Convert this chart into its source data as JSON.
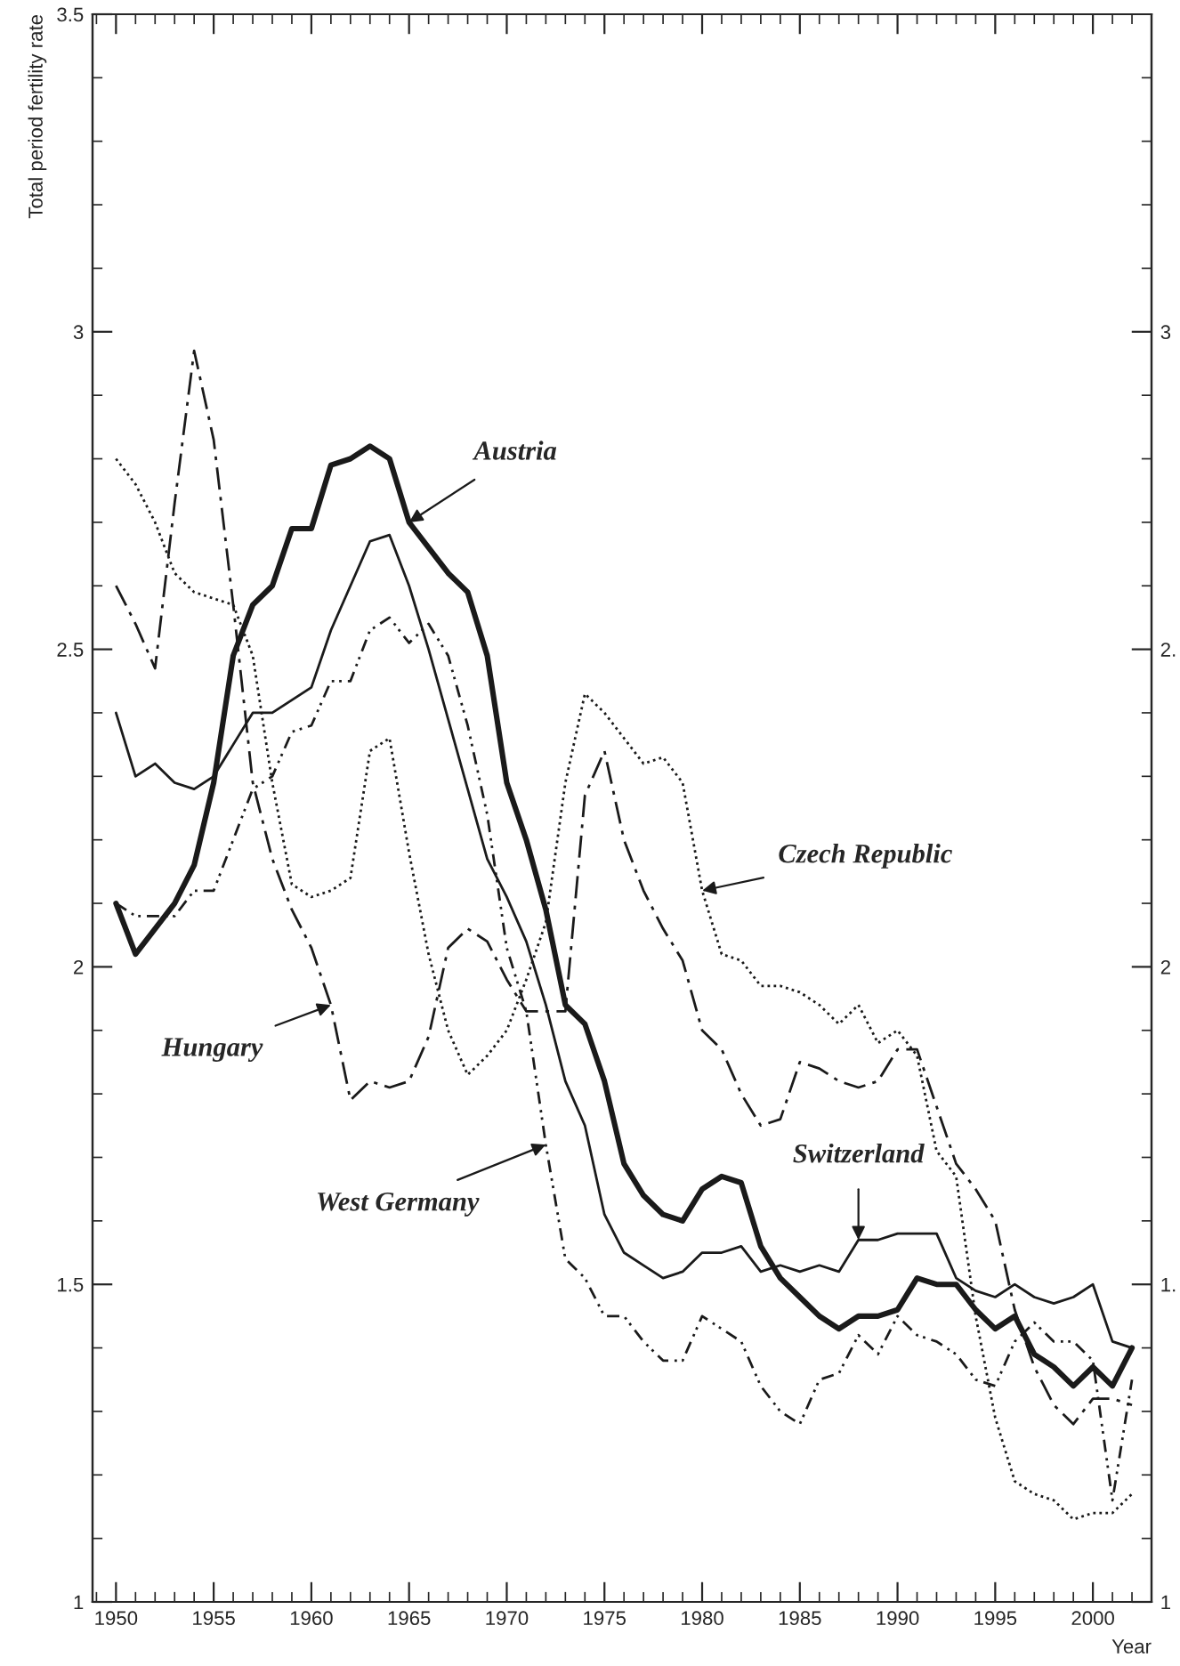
{
  "chart_data": {
    "type": "line",
    "xlabel": "Year",
    "ylabel": "Total period fertility rate",
    "xlim": [
      1948.8,
      2003
    ],
    "xticks": [
      1950,
      1955,
      1960,
      1965,
      1970,
      1975,
      1980,
      1985,
      1990,
      1995,
      2000
    ],
    "ylim": [
      1,
      3.5
    ],
    "yticks": [
      1,
      1.5,
      2,
      2.5,
      3,
      3.5
    ],
    "y2lim": [
      1,
      3.5
    ],
    "y2ticks": [
      1,
      {
        "value": 1.5,
        "label": "1."
      },
      2,
      {
        "value": 2.5,
        "label": "2."
      },
      3
    ],
    "x": [
      1950,
      1951,
      1952,
      1953,
      1954,
      1955,
      1956,
      1957,
      1958,
      1959,
      1960,
      1961,
      1962,
      1963,
      1964,
      1965,
      1966,
      1967,
      1968,
      1969,
      1970,
      1971,
      1972,
      1973,
      1974,
      1975,
      1976,
      1977,
      1978,
      1979,
      1980,
      1981,
      1982,
      1983,
      1984,
      1985,
      1986,
      1987,
      1988,
      1989,
      1990,
      1991,
      1992,
      1993,
      1994,
      1995,
      1996,
      1997,
      1998,
      1999,
      2000,
      2001,
      2002
    ],
    "grid": false,
    "legend": false,
    "marker": "none",
    "series": [
      {
        "color": "#1a1a1a",
        "line_style": "solid",
        "values": [
          2.1,
          2.02,
          2.06,
          2.1,
          2.16,
          2.29,
          2.49,
          2.57,
          2.6,
          2.69,
          2.69,
          2.79,
          2.8,
          2.82,
          2.8,
          2.7,
          2.66,
          2.62,
          2.59,
          2.49,
          2.29,
          2.2,
          2.09,
          1.94,
          1.91,
          1.82,
          1.69,
          1.64,
          1.61,
          1.6,
          1.65,
          1.67,
          1.66,
          1.56,
          1.51,
          1.48,
          1.45,
          1.43,
          1.45,
          1.45,
          1.46,
          1.51,
          1.5,
          1.5,
          1.46,
          1.43,
          1.45,
          1.39,
          1.37,
          1.34,
          1.37,
          1.34,
          1.4
        ]
      },
      {
        "color": "#1a1a1a",
        "line_style": "solid",
        "values": [
          2.4,
          2.3,
          2.32,
          2.29,
          2.28,
          2.3,
          2.35,
          2.4,
          2.4,
          2.42,
          2.44,
          2.53,
          2.6,
          2.67,
          2.68,
          2.6,
          2.5,
          2.39,
          2.28,
          2.17,
          2.11,
          2.04,
          1.94,
          1.82,
          1.75,
          1.61,
          1.55,
          1.53,
          1.51,
          1.52,
          1.55,
          1.55,
          1.56,
          1.52,
          1.53,
          1.52,
          1.53,
          1.52,
          1.57,
          1.57,
          1.58,
          1.58,
          1.58,
          1.51,
          1.49,
          1.48,
          1.5,
          1.48,
          1.47,
          1.48,
          1.5,
          1.41,
          1.4
        ]
      },
      {
        "color": "#1a1a1a",
        "line_style": "dotted",
        "values": [
          2.8,
          2.76,
          2.7,
          2.62,
          2.59,
          2.58,
          2.57,
          2.49,
          2.29,
          2.13,
          2.11,
          2.12,
          2.14,
          2.34,
          2.36,
          2.18,
          2.02,
          1.9,
          1.83,
          1.86,
          1.9,
          1.98,
          2.07,
          2.29,
          2.43,
          2.4,
          2.36,
          2.32,
          2.33,
          2.29,
          2.12,
          2.02,
          2.01,
          1.97,
          1.97,
          1.96,
          1.94,
          1.91,
          1.94,
          1.88,
          1.9,
          1.86,
          1.71,
          1.67,
          1.45,
          1.29,
          1.19,
          1.17,
          1.16,
          1.13,
          1.14,
          1.14,
          1.17
        ]
      },
      {
        "color": "#1a1a1a",
        "line_style": "dashed",
        "values": [
          2.6,
          2.54,
          2.47,
          2.73,
          2.97,
          2.83,
          2.57,
          2.29,
          2.17,
          2.09,
          2.03,
          1.94,
          1.79,
          1.82,
          1.81,
          1.82,
          1.89,
          2.03,
          2.06,
          2.04,
          1.98,
          1.93,
          1.93,
          1.93,
          2.27,
          2.34,
          2.2,
          2.12,
          2.06,
          2.01,
          1.9,
          1.87,
          1.8,
          1.75,
          1.76,
          1.85,
          1.84,
          1.82,
          1.81,
          1.82,
          1.87,
          1.87,
          1.78,
          1.69,
          1.65,
          1.6,
          1.46,
          1.37,
          1.31,
          1.28,
          1.32,
          1.32,
          1.31
        ]
      },
      {
        "color": "#1a1a1a",
        "line_style": "dashdot",
        "values": [
          2.1,
          2.08,
          2.08,
          2.08,
          2.12,
          2.12,
          2.2,
          2.28,
          2.3,
          2.37,
          2.38,
          2.45,
          2.45,
          2.53,
          2.55,
          2.51,
          2.54,
          2.49,
          2.38,
          2.24,
          2.03,
          1.93,
          1.72,
          1.54,
          1.51,
          1.45,
          1.45,
          1.41,
          1.38,
          1.38,
          1.45,
          1.43,
          1.41,
          1.34,
          1.3,
          1.28,
          1.35,
          1.36,
          1.42,
          1.39,
          1.45,
          1.42,
          1.41,
          1.39,
          1.35,
          1.34,
          1.41,
          1.44,
          1.41,
          1.41,
          1.38,
          1.16,
          1.35
        ]
      }
    ],
    "annotations": [
      {
        "text": "Austria",
        "x": 1965,
        "y": 2.7
      },
      {
        "text": "Czech Republic",
        "x": 1980,
        "y": 2.12
      },
      {
        "text": "Switzerland",
        "x": 1988,
        "y": 1.57
      },
      {
        "text": "Hungary",
        "x": 1961,
        "y": 1.94
      },
      {
        "text": "West Germany",
        "x": 1972,
        "y": 1.72
      }
    ]
  }
}
